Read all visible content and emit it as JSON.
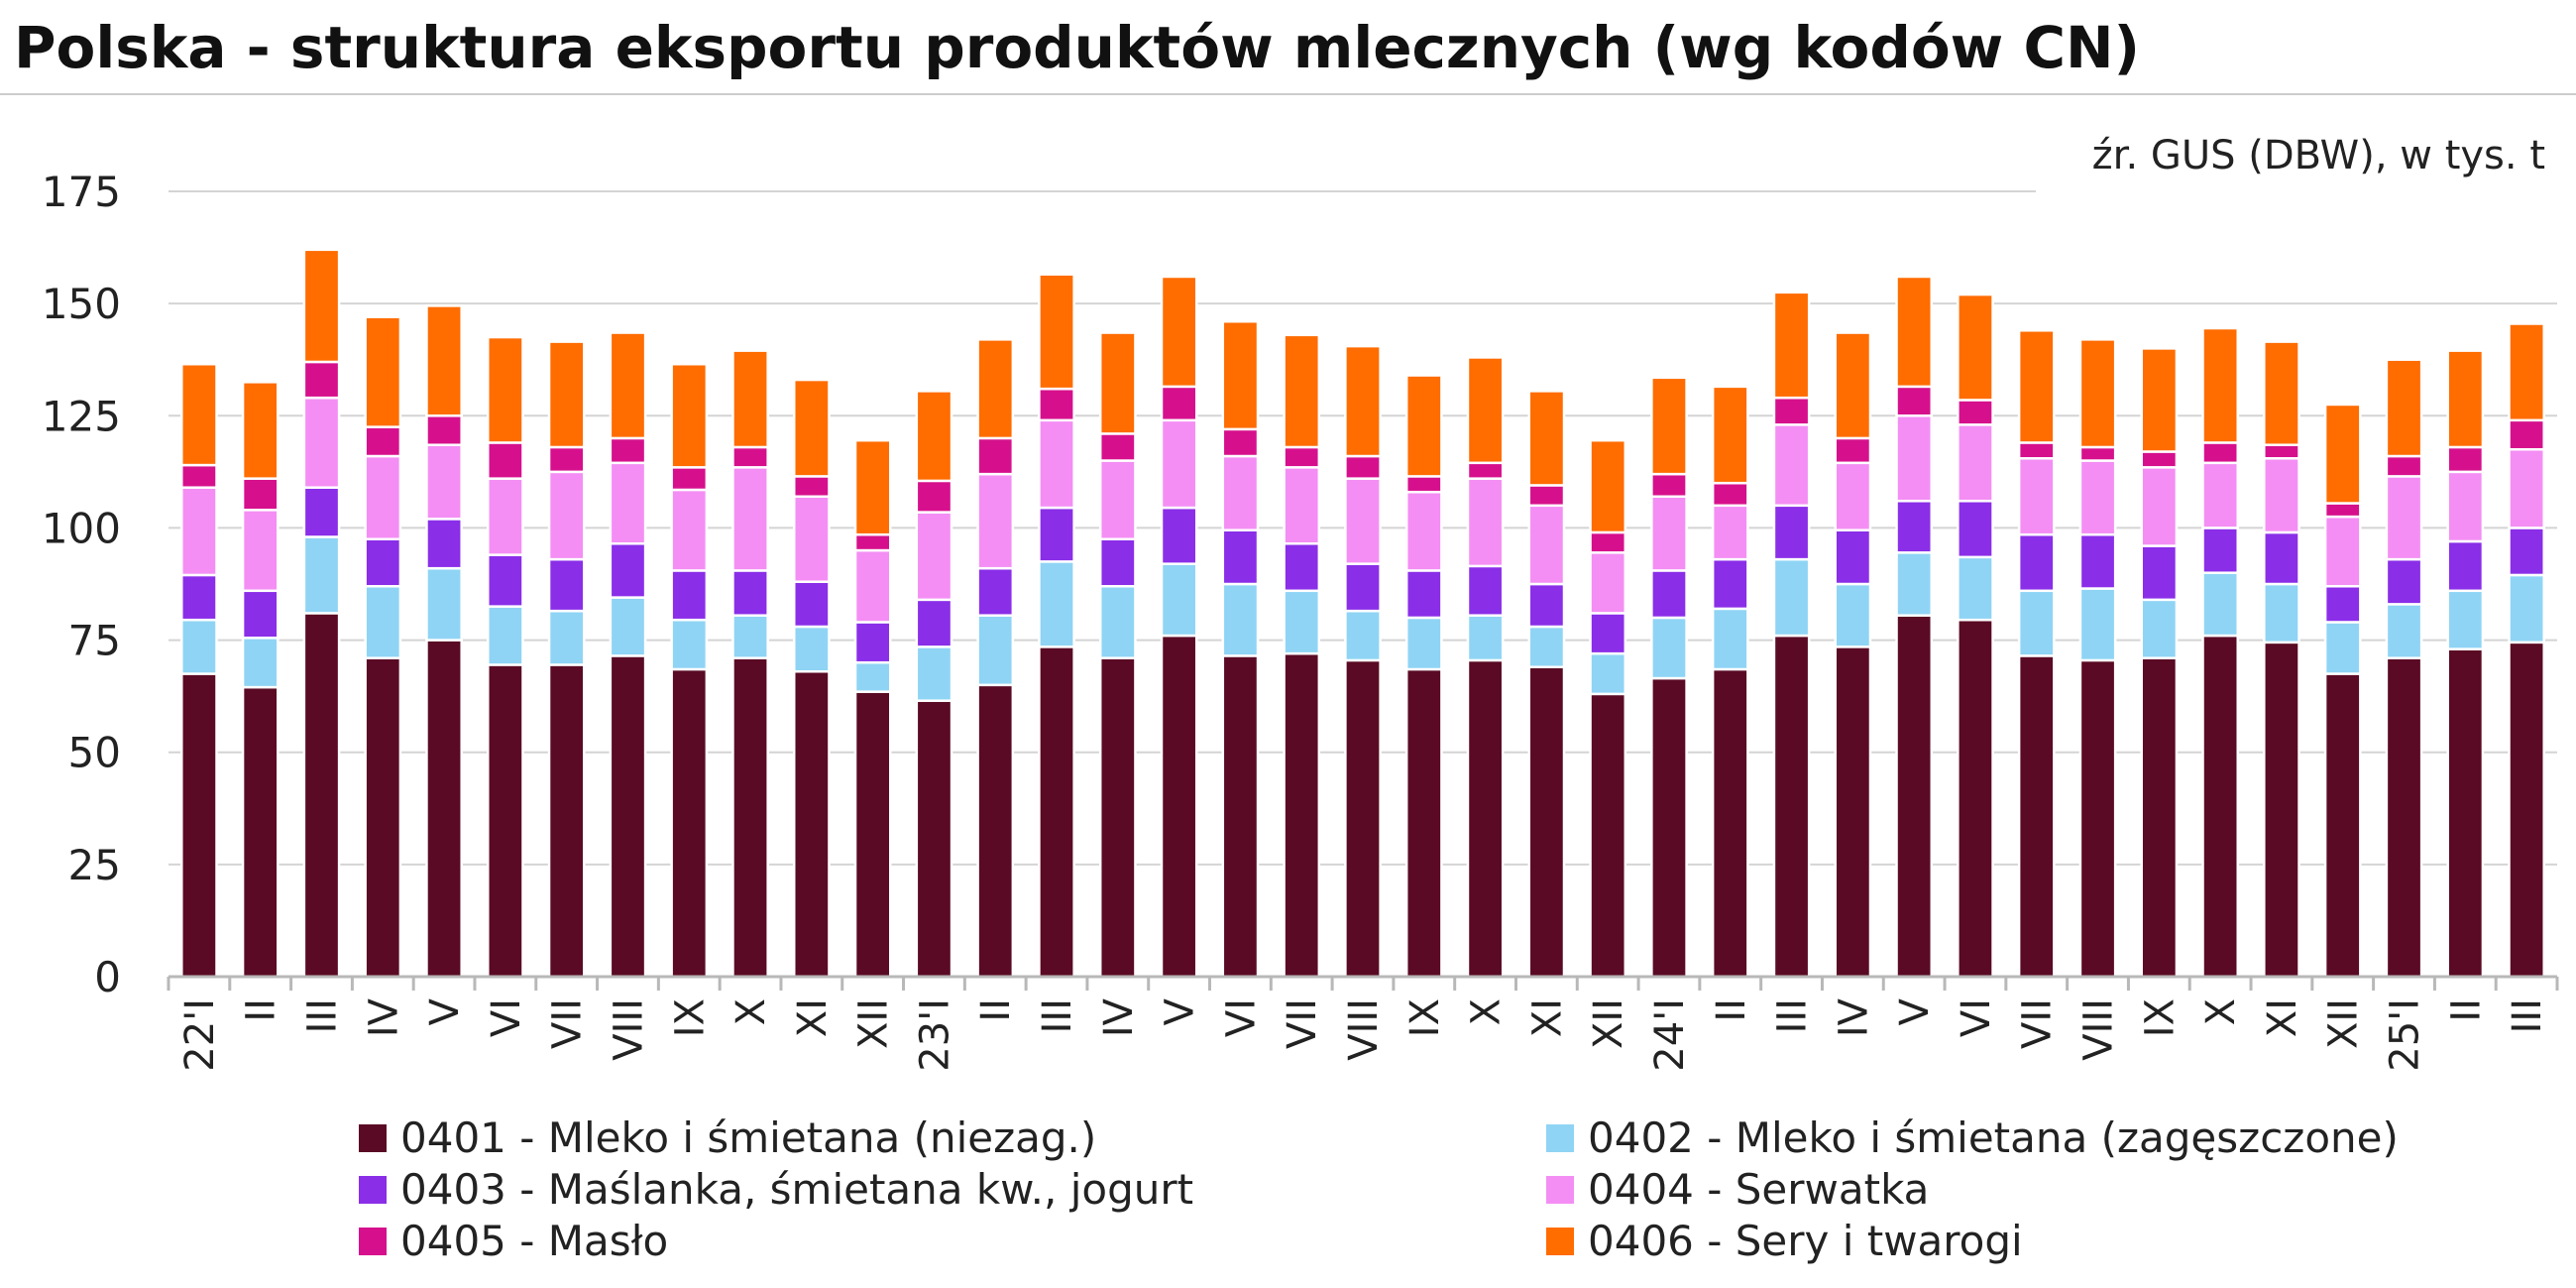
{
  "chart_data": {
    "type": "bar",
    "stacked": true,
    "title": "Polska - struktura eksportu produktów mlecznych (wg kodów CN)",
    "source_note": "źr. GUS (DBW), w tys. t",
    "ylim": [
      0,
      175
    ],
    "yticks": [
      0,
      25,
      50,
      75,
      100,
      125,
      150,
      175
    ],
    "grid": true,
    "legend_position": "bottom",
    "categories": [
      "22'I",
      "II",
      "III",
      "IV",
      "V",
      "VI",
      "VII",
      "VIII",
      "IX",
      "X",
      "XI",
      "XII",
      "23'I",
      "II",
      "III",
      "IV",
      "V",
      "VI",
      "VII",
      "VIII",
      "IX",
      "X",
      "XI",
      "XII",
      "24'I",
      "II",
      "III",
      "IV",
      "V",
      "VI",
      "VII",
      "VIII",
      "IX",
      "X",
      "XI",
      "XII",
      "25'I",
      "II",
      "III"
    ],
    "series": [
      {
        "name": "0401 - Mleko i śmietana (niezag.)",
        "color": "#5a0a24",
        "values": [
          67.5,
          64.5,
          81,
          71,
          75,
          69.5,
          69.5,
          71.5,
          68.5,
          71,
          68,
          63.5,
          61.5,
          65,
          73.5,
          71,
          76,
          71.5,
          72,
          70.5,
          68.5,
          70.5,
          69,
          63,
          66.5,
          68.5,
          76,
          73.5,
          80.5,
          79.5,
          71.5,
          70.5,
          71,
          76,
          74.5,
          67.5,
          71,
          73,
          74.5
        ]
      },
      {
        "name": "0402 - Mleko i śmietana (zagęszczone)",
        "color": "#8fd4f5",
        "values": [
          12,
          11,
          17,
          16,
          16,
          13,
          12,
          13,
          11,
          9.5,
          10,
          6.5,
          12,
          15.5,
          19,
          16,
          16,
          16,
          14,
          11,
          11.5,
          10,
          9,
          9,
          13.5,
          13.5,
          17,
          14,
          14,
          14,
          14.5,
          16,
          13,
          14,
          13,
          11.5,
          12,
          13,
          15
        ]
      },
      {
        "name": "0403 - Maślanka, śmietana kw., jogurt",
        "color": "#8a2ee8",
        "values": [
          10,
          10.5,
          11,
          10.5,
          11,
          11.5,
          11.5,
          12,
          11,
          10,
          10,
          9,
          10.5,
          10.5,
          12,
          10.5,
          12.5,
          12,
          10.5,
          10.5,
          10.5,
          11,
          9.5,
          9,
          10.5,
          11,
          12,
          12,
          11.5,
          12.5,
          12.5,
          12,
          12,
          10,
          11.5,
          8,
          10,
          11,
          10.5
        ]
      },
      {
        "name": "0404 - Serwatka",
        "color": "#f48ef4",
        "values": [
          19.5,
          18,
          20,
          18.5,
          16.5,
          17,
          19.5,
          18,
          18,
          23,
          19,
          16,
          19.5,
          21,
          19.5,
          17.5,
          19.5,
          16.5,
          17,
          19,
          17.5,
          19.5,
          17.5,
          13.5,
          16.5,
          12,
          18,
          15,
          19,
          17,
          17,
          16.5,
          17.5,
          14.5,
          16.5,
          15.5,
          18.5,
          15.5,
          17.5
        ]
      },
      {
        "name": "0405 - Masło",
        "color": "#d6108c",
        "values": [
          5,
          7,
          8,
          6.5,
          6.5,
          8,
          5.5,
          5.5,
          5,
          4.5,
          4.5,
          3.5,
          7,
          8,
          7,
          6,
          7.5,
          6,
          4.5,
          5,
          3.5,
          3.5,
          4.5,
          4.5,
          5,
          5,
          6,
          5.5,
          6.5,
          5.5,
          3.5,
          3,
          3.5,
          4.5,
          3,
          3,
          4.5,
          5.5,
          6.5
        ]
      },
      {
        "name": "0406 - Sery i twarogi",
        "color": "#ff6c00",
        "values": [
          22.5,
          21.5,
          25,
          24.5,
          24.5,
          23.5,
          23.5,
          23.5,
          23,
          21.5,
          21.5,
          21,
          20,
          22,
          25.5,
          22.5,
          24.5,
          24,
          25,
          24.5,
          22.5,
          23.5,
          21,
          20.5,
          21.5,
          21.5,
          23.5,
          23.5,
          24.5,
          23.5,
          25,
          24,
          23,
          25.5,
          23,
          22,
          21.5,
          21.5,
          21.5
        ]
      }
    ]
  }
}
